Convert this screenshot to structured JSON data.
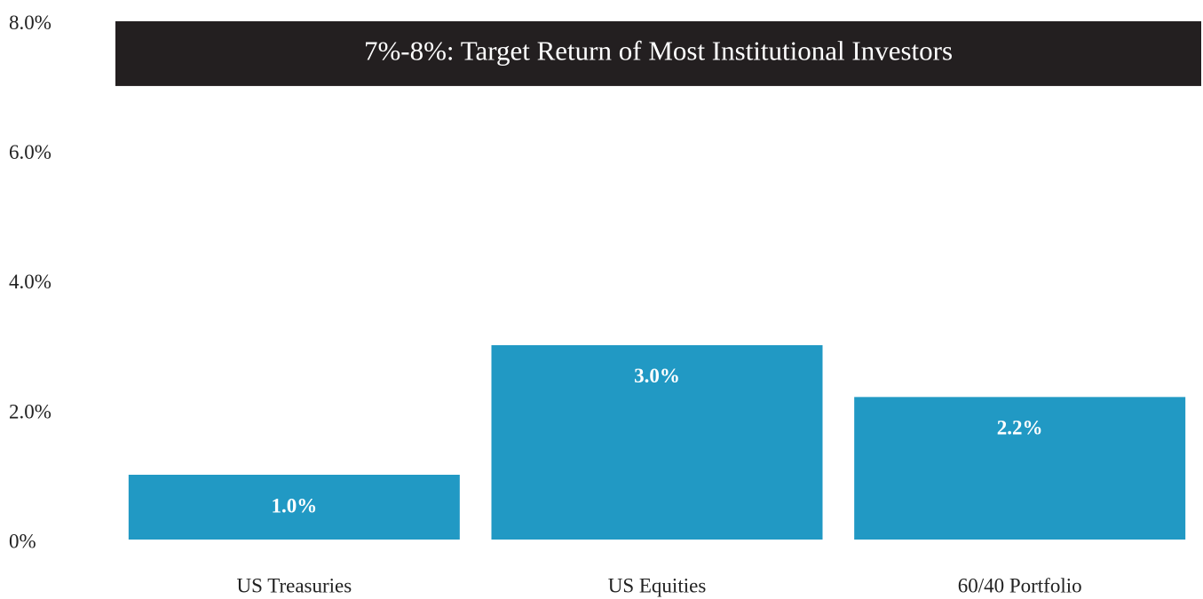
{
  "chart_data": {
    "type": "bar",
    "categories": [
      "US Treasuries",
      "US Equities",
      "60/40 Portfolio"
    ],
    "values": [
      1.0,
      3.0,
      2.2
    ],
    "value_labels": [
      "1.0%",
      "3.0%",
      "2.2%"
    ],
    "color": "#2199c4",
    "ylim": [
      0,
      8.3
    ],
    "yticks": [
      {
        "value": 0,
        "label": "0%"
      },
      {
        "value": 2,
        "label": "2.0%"
      },
      {
        "value": 4,
        "label": "4.0%"
      },
      {
        "value": 6,
        "label": "6.0%"
      },
      {
        "value": 8,
        "label": "8.0%"
      }
    ],
    "grid": false,
    "band": {
      "from": 7,
      "to": 8,
      "label": "7%-8%: Target Return of Most Institutional Investors",
      "color": "#231f20"
    }
  }
}
